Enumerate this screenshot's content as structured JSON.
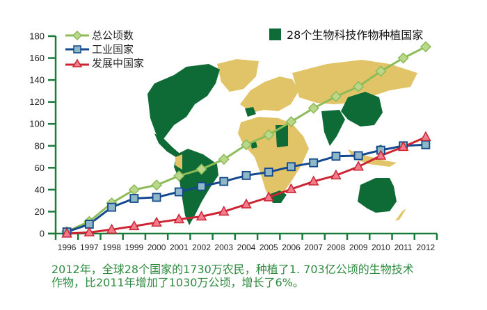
{
  "map_legend": {
    "label": "28个生物科技作物种植国家",
    "color": "#0e6b35",
    "non_biotech_color": "#e2c468"
  },
  "caption": {
    "line1": "2012年，全球28个国家的1730万农民，种植了1. 703亿公顷的生物技术",
    "line2": "作物，比2011年增加了1030万公顷，增长了6%。"
  },
  "colors": {
    "axis": "#1a7a3a",
    "total": "#8dbb59",
    "industrial": "#13488f",
    "developing": "#cc2433",
    "caption": "#2d8a3e"
  },
  "chart_data": {
    "type": "line",
    "title": "",
    "xlabel": "",
    "ylabel": "",
    "x": [
      1996,
      1997,
      1998,
      1999,
      2000,
      2001,
      2002,
      2003,
      2004,
      2005,
      2006,
      2007,
      2008,
      2009,
      2010,
      2011,
      2012
    ],
    "ylim": [
      0,
      180
    ],
    "yticks": [
      0,
      20,
      40,
      60,
      80,
      100,
      120,
      140,
      160,
      180
    ],
    "grid": false,
    "legend_position": "top-left",
    "series": [
      {
        "name": "总公顷数",
        "marker": "diamond",
        "color": "#8dbb59",
        "values": [
          1.7,
          11,
          27.8,
          39.9,
          44.2,
          52.6,
          58.7,
          67.7,
          81.0,
          90.0,
          102.0,
          114.3,
          125.0,
          134.0,
          148.0,
          160.0,
          170.3
        ]
      },
      {
        "name": "工业国家",
        "marker": "square",
        "color": "#13488f",
        "values": [
          1.5,
          8.5,
          24,
          32,
          33,
          38,
          43,
          47.5,
          53,
          56,
          61,
          64.5,
          70.5,
          71,
          76,
          80,
          81
        ]
      },
      {
        "name": "发展中国家",
        "marker": "triangle",
        "color": "#cc2433",
        "values": [
          0,
          1,
          3.6,
          6.7,
          10,
          13,
          15.5,
          20,
          26.6,
          33,
          40.5,
          47.5,
          53,
          61,
          71,
          79,
          88
        ]
      }
    ]
  }
}
